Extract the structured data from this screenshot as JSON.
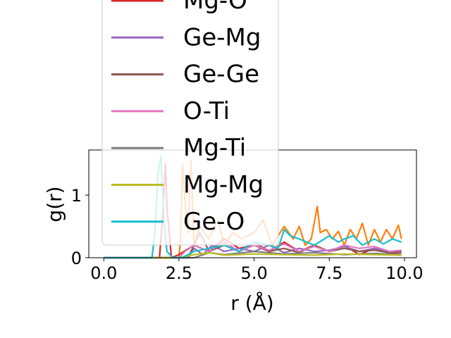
{
  "chart_data": {
    "type": "line",
    "title": "",
    "xlabel": "r (Å)",
    "ylabel": "g(r)",
    "xlim": [
      -0.5,
      10.4
    ],
    "ylim": [
      0,
      1.72
    ],
    "xticks": [
      0.0,
      2.5,
      5.0,
      7.5,
      10.0
    ],
    "xtick_labels": [
      "0.0",
      "2.5",
      "5.0",
      "7.5",
      "10.0"
    ],
    "yticks": [
      0,
      1
    ],
    "ytick_labels": [
      "0",
      "1"
    ],
    "grid": false,
    "legend_location": "upper-left, extending above the axes",
    "series": [
      {
        "name": "",
        "color": "#ff7f0e",
        "x": [
          0,
          1.5,
          2.5,
          2.55,
          2.62,
          2.7,
          2.8,
          2.9,
          3.0,
          3.2,
          3.5,
          3.8,
          4.0,
          4.3,
          4.6,
          5.0,
          5.3,
          5.6,
          6.0,
          6.3,
          6.5,
          6.7,
          6.9,
          7.1,
          7.2,
          7.4,
          7.6,
          7.8,
          8.0,
          8.2,
          8.4,
          8.6,
          8.8,
          9.0,
          9.2,
          9.4,
          9.6,
          9.8,
          9.9
        ],
        "y": [
          0,
          0,
          0,
          0.3,
          1.48,
          0.9,
          0.4,
          1.55,
          0.2,
          0.5,
          0.3,
          0.6,
          0.2,
          0.4,
          0.3,
          0.4,
          0.6,
          0.2,
          0.5,
          0.3,
          0.5,
          0.2,
          0.3,
          0.82,
          0.4,
          0.45,
          0.3,
          0.42,
          0.2,
          0.45,
          0.3,
          0.55,
          0.2,
          0.45,
          0.25,
          0.45,
          0.3,
          0.52,
          0.3
        ]
      },
      {
        "name": "Mg-O",
        "color": "#d62728",
        "x": [
          0,
          1.85,
          1.95,
          2.05,
          2.1,
          2.25,
          2.5,
          3.0,
          3.5,
          4.0,
          4.5,
          5.0,
          5.5,
          6.0,
          6.5,
          7.0,
          7.5,
          8.0,
          8.5,
          9.0,
          9.5,
          9.9
        ],
        "y": [
          0,
          0,
          0.6,
          1.5,
          0.8,
          0,
          0.05,
          0.2,
          0.1,
          0.3,
          0.15,
          0.2,
          0.1,
          0.25,
          0.1,
          0.2,
          0.1,
          0.2,
          0.05,
          0.15,
          0.08,
          0.05
        ]
      },
      {
        "name": "Ge-Mg",
        "color": "#9467bd",
        "x": [
          0,
          2.8,
          3.0,
          3.3,
          3.6,
          4.0,
          4.5,
          5.0,
          5.5,
          6.0,
          6.5,
          7.0,
          7.5,
          8.0,
          8.5,
          9.0,
          9.5,
          9.9
        ],
        "y": [
          0,
          0,
          0.15,
          0.05,
          0.2,
          0.1,
          0.15,
          0.1,
          0.2,
          0.08,
          0.15,
          0.1,
          0.12,
          0.18,
          0.1,
          0.15,
          0.1,
          0.08
        ]
      },
      {
        "name": "Ge-Ge",
        "color": "#8c564b",
        "x": [
          0,
          2.8,
          3.0,
          3.2,
          3.5,
          4.0,
          4.5,
          5.0,
          5.5,
          6.0,
          6.5,
          7.0,
          7.5,
          8.0,
          8.5,
          9.0,
          9.5,
          9.9
        ],
        "y": [
          0,
          0,
          0.2,
          0.4,
          0.1,
          0.2,
          0.1,
          0.25,
          0.1,
          0.15,
          0.08,
          0.2,
          0.1,
          0.15,
          0.1,
          0.12,
          0.08,
          0.1
        ]
      },
      {
        "name": "O-Ti",
        "color": "#e377c2",
        "x": [
          0,
          2.5,
          2.7,
          3.0,
          3.5,
          4.0,
          4.5,
          5.0,
          5.5,
          6.0,
          6.5,
          7.0,
          7.5,
          8.0,
          8.5,
          9.0,
          9.5,
          9.9
        ],
        "y": [
          0,
          0,
          0.1,
          0.2,
          0.1,
          0.25,
          0.1,
          0.2,
          0.12,
          0.22,
          0.1,
          0.18,
          0.1,
          0.2,
          0.15,
          0.18,
          0.1,
          0.12
        ]
      },
      {
        "name": "Mg-Ti",
        "color": "#7f7f7f",
        "x": [
          0,
          3.0,
          3.5,
          4.0,
          5.0,
          6.0,
          7.0,
          8.0,
          9.0,
          9.9
        ],
        "y": [
          0,
          0,
          0.08,
          0.05,
          0.1,
          0.06,
          0.08,
          0.05,
          0.07,
          0.05
        ]
      },
      {
        "name": "Mg-Mg",
        "color": "#bcbd22",
        "x": [
          0,
          2.5,
          3.0,
          3.5,
          4.0,
          5.0,
          6.0,
          7.0,
          8.0,
          9.0,
          9.9
        ],
        "y": [
          0,
          0,
          0.05,
          0.08,
          0.04,
          0.06,
          0.05,
          0.04,
          0.06,
          0.05,
          0.04
        ]
      },
      {
        "name": "Ge-O",
        "color": "#17becf",
        "x": [
          0,
          1.6,
          1.7,
          1.8,
          1.9,
          2.0,
          2.1,
          2.3,
          2.6,
          3.0,
          3.5,
          4.0,
          4.5,
          5.0,
          5.5,
          5.8,
          6.0,
          6.2,
          6.5,
          7.0,
          7.5,
          7.8,
          8.0,
          8.3,
          8.6,
          9.0,
          9.3,
          9.6,
          9.9
        ],
        "y": [
          0,
          0,
          0.4,
          1.35,
          1.62,
          0.6,
          0.1,
          0,
          0,
          0.1,
          0.15,
          0.2,
          0.1,
          0.25,
          0.2,
          0.15,
          0.45,
          0.35,
          0.3,
          0.2,
          0.35,
          0.25,
          0.3,
          0.35,
          0.2,
          0.3,
          0.22,
          0.3,
          0.25
        ]
      }
    ]
  }
}
